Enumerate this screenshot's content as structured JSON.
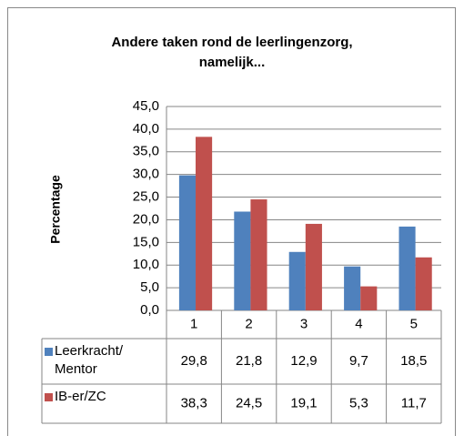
{
  "chart_data": {
    "type": "bar",
    "title": "Andere taken rond de leerlingenzorg, namelijk...",
    "y_label": "Percentage",
    "categories": [
      "1",
      "2",
      "3",
      "4",
      "5"
    ],
    "series": [
      {
        "name": "Leerkracht/ Mentor",
        "color": "#4f81bd",
        "values": [
          29.8,
          21.8,
          12.9,
          9.7,
          18.5
        ],
        "value_labels": [
          "29,8",
          "21,8",
          "12,9",
          "9,7",
          "18,5"
        ]
      },
      {
        "name": "IB-er/ZC",
        "color": "#c0504d",
        "values": [
          38.3,
          24.5,
          19.1,
          5.3,
          11.7
        ],
        "value_labels": [
          "38,3",
          "24,5",
          "19,1",
          "5,3",
          "11,7"
        ]
      }
    ],
    "ylim": [
      0,
      45
    ],
    "yticks": [
      {
        "value": 0,
        "label": "0,0"
      },
      {
        "value": 5,
        "label": "5,0"
      },
      {
        "value": 10,
        "label": "10,0"
      },
      {
        "value": 15,
        "label": "15,0"
      },
      {
        "value": 20,
        "label": "20,0"
      },
      {
        "value": 25,
        "label": "25,0"
      },
      {
        "value": 30,
        "label": "30,0"
      },
      {
        "value": 35,
        "label": "35,0"
      },
      {
        "value": 40,
        "label": "40,0"
      },
      {
        "value": 45,
        "label": "45,0"
      }
    ],
    "grid": true,
    "data_table": true
  }
}
